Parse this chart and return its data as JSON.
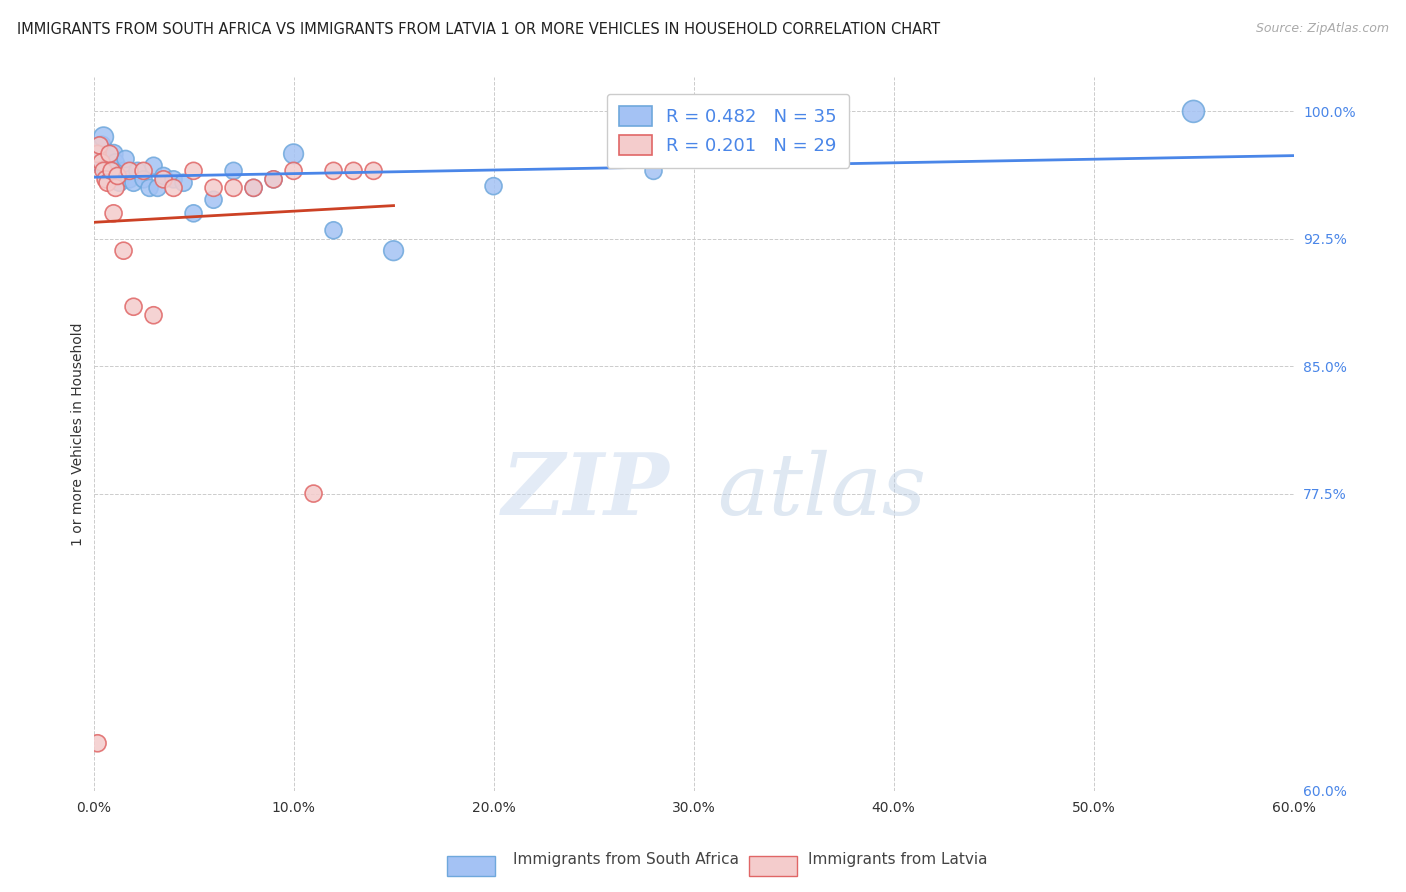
{
  "title": "IMMIGRANTS FROM SOUTH AFRICA VS IMMIGRANTS FROM LATVIA 1 OR MORE VEHICLES IN HOUSEHOLD CORRELATION CHART",
  "source": "Source: ZipAtlas.com",
  "ylabel": "1 or more Vehicles in Household",
  "xlabel": "",
  "xlim": [
    0.0,
    0.6
  ],
  "ylim": [
    0.6,
    1.02
  ],
  "xtick_labels": [
    "0.0%",
    "10.0%",
    "20.0%",
    "30.0%",
    "40.0%",
    "50.0%",
    "60.0%"
  ],
  "xtick_vals": [
    0.0,
    0.1,
    0.2,
    0.3,
    0.4,
    0.5,
    0.6
  ],
  "ytick_labels": [
    "60.0%",
    "77.5%",
    "85.0%",
    "92.5%",
    "100.0%"
  ],
  "ytick_vals": [
    0.6,
    0.775,
    0.85,
    0.925,
    1.0
  ],
  "south_africa_color": "#a4c2f4",
  "south_africa_edge": "#6fa8dc",
  "latvia_color": "#f4cccc",
  "latvia_edge": "#e06666",
  "trendline_south_africa_color": "#4a86e8",
  "trendline_latvia_color": "#cc4125",
  "R_south_africa": 0.482,
  "N_south_africa": 35,
  "R_latvia": 0.201,
  "N_latvia": 29,
  "south_africa_x": [
    0.002,
    0.003,
    0.004,
    0.005,
    0.006,
    0.007,
    0.008,
    0.009,
    0.01,
    0.011,
    0.012,
    0.013,
    0.015,
    0.016,
    0.018,
    0.02,
    0.022,
    0.025,
    0.028,
    0.03,
    0.032,
    0.035,
    0.04,
    0.045,
    0.05,
    0.06,
    0.07,
    0.08,
    0.09,
    0.1,
    0.12,
    0.15,
    0.2,
    0.28,
    0.55
  ],
  "south_africa_y": [
    0.97,
    0.975,
    0.98,
    0.985,
    0.965,
    0.96,
    0.972,
    0.968,
    0.975,
    0.97,
    0.962,
    0.958,
    0.965,
    0.972,
    0.96,
    0.958,
    0.965,
    0.96,
    0.955,
    0.968,
    0.955,
    0.962,
    0.96,
    0.958,
    0.94,
    0.948,
    0.965,
    0.955,
    0.96,
    0.975,
    0.93,
    0.918,
    0.956,
    0.965,
    1.0
  ],
  "south_africa_sizes": [
    150,
    150,
    180,
    200,
    150,
    150,
    150,
    150,
    180,
    150,
    150,
    150,
    150,
    150,
    150,
    150,
    150,
    150,
    150,
    150,
    150,
    150,
    150,
    150,
    150,
    150,
    150,
    150,
    150,
    200,
    150,
    200,
    150,
    150,
    250
  ],
  "latvia_x": [
    0.002,
    0.003,
    0.004,
    0.005,
    0.006,
    0.007,
    0.008,
    0.009,
    0.01,
    0.011,
    0.012,
    0.015,
    0.018,
    0.02,
    0.025,
    0.03,
    0.035,
    0.04,
    0.05,
    0.06,
    0.07,
    0.08,
    0.09,
    0.1,
    0.11,
    0.12,
    0.13,
    0.14,
    0.002
  ],
  "latvia_y": [
    0.975,
    0.98,
    0.97,
    0.965,
    0.96,
    0.958,
    0.975,
    0.965,
    0.94,
    0.955,
    0.962,
    0.918,
    0.965,
    0.885,
    0.965,
    0.88,
    0.96,
    0.955,
    0.965,
    0.955,
    0.955,
    0.955,
    0.96,
    0.965,
    0.775,
    0.965,
    0.965,
    0.965,
    0.628
  ],
  "latvia_sizes": [
    150,
    150,
    150,
    150,
    150,
    150,
    150,
    150,
    150,
    150,
    150,
    150,
    150,
    150,
    150,
    150,
    150,
    150,
    150,
    150,
    150,
    150,
    150,
    150,
    150,
    150,
    150,
    150,
    150
  ],
  "watermark_zip": "ZIP",
  "watermark_atlas": "atlas",
  "background_color": "#ffffff",
  "grid_color": "#cccccc"
}
